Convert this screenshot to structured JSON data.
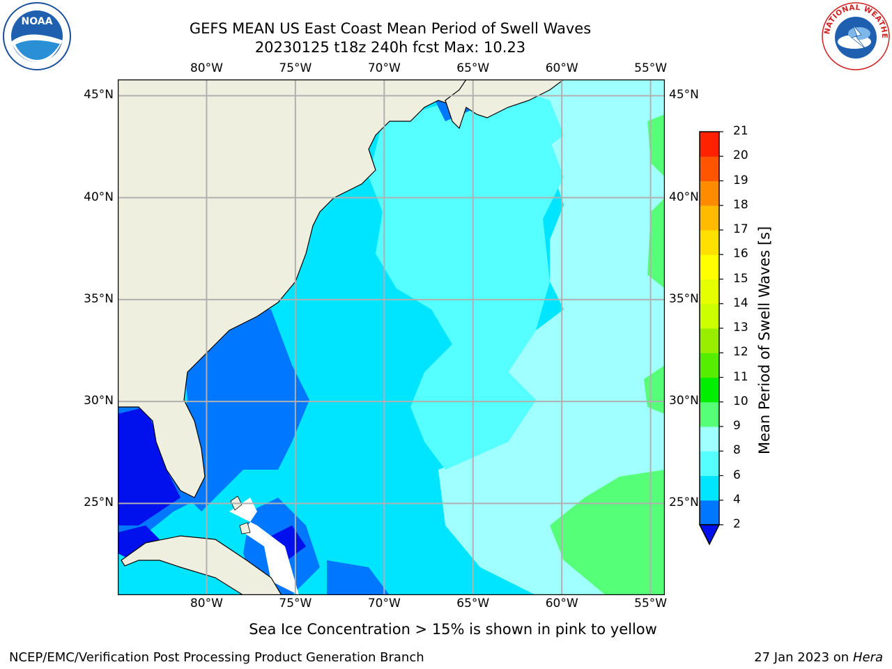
{
  "title": {
    "line1": "GEFS MEAN US East Coast Mean Period of Swell Waves",
    "line2": "20230125 t18z 240h fcst   Max: 10.23"
  },
  "map": {
    "lon_labels": [
      "80°W",
      "75°W",
      "70°W",
      "65°W",
      "60°W",
      "55°W"
    ],
    "lat_labels": [
      "45°N",
      "40°N",
      "35°N",
      "30°N",
      "25°N"
    ],
    "lon_values": [
      -80,
      -75,
      -70,
      -65,
      -60,
      -55
    ],
    "lat_values": [
      45,
      40,
      35,
      30,
      25
    ],
    "lon_range": [
      -85,
      -54.2
    ],
    "lat_range": [
      20.5,
      45.8
    ],
    "grid": true,
    "colors": {
      "land": "#efefdf",
      "grid": "#b0b0b0",
      "coast": "#000000"
    }
  },
  "colorbar": {
    "title": "Mean Period of Swell Waves [s]",
    "ticks": [
      "2",
      "4",
      "6",
      "8",
      "9",
      "10",
      "11",
      "12",
      "13",
      "14",
      "15",
      "16",
      "17",
      "18",
      "19",
      "20",
      "21"
    ],
    "levels": [
      2,
      4,
      6,
      8,
      9,
      10,
      11,
      12,
      13,
      14,
      15,
      16,
      17,
      18,
      19,
      20,
      21
    ],
    "colors": [
      "#0077ff",
      "#00e5ff",
      "#55ffff",
      "#a0ffff",
      "#55ff77",
      "#00ee00",
      "#55ee00",
      "#99ee00",
      "#ccff00",
      "#e5ff00",
      "#ffff00",
      "#ffe000",
      "#ffbb00",
      "#ff8c00",
      "#ff5500",
      "#ff2200"
    ],
    "under_color": "#0011ee",
    "extend": "min"
  },
  "caption": "Sea Ice Concentration > 15% is shown in pink to yellow",
  "footer": {
    "left": "NCEP/EMC/Verification Post Processing Product Generation Branch",
    "date": "27 Jan 2023 on ",
    "host": "Hera"
  },
  "logos": {
    "left": {
      "icon": "noaa-logo",
      "text": "NOAA"
    },
    "right": {
      "icon": "nws-logo",
      "text": "NATIONAL WEATHER SERVICE"
    }
  }
}
